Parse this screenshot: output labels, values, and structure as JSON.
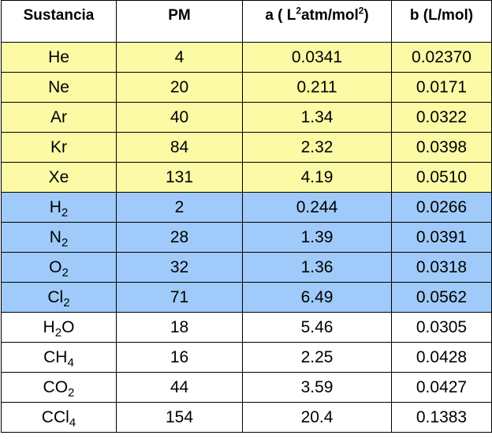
{
  "table": {
    "headers": {
      "sustancia": "Sustancia",
      "pm": "PM",
      "a_prefix": "a ( L",
      "a_sup1": "2",
      "a_mid": "atm/mol",
      "a_sup2": "2",
      "a_suffix": ")",
      "b": "b (L/mol)"
    },
    "rows": [
      {
        "group": "noble",
        "formula": [
          {
            "t": "He"
          }
        ],
        "pm": "4",
        "a": "0.0341",
        "b": "0.02370"
      },
      {
        "group": "noble",
        "formula": [
          {
            "t": "Ne"
          }
        ],
        "pm": "20",
        "a": "0.211",
        "b": "0.0171"
      },
      {
        "group": "noble",
        "formula": [
          {
            "t": "Ar"
          }
        ],
        "pm": "40",
        "a": "1.34",
        "b": "0.0322"
      },
      {
        "group": "noble",
        "formula": [
          {
            "t": "Kr"
          }
        ],
        "pm": "84",
        "a": "2.32",
        "b": "0.0398"
      },
      {
        "group": "noble",
        "formula": [
          {
            "t": "Xe"
          }
        ],
        "pm": "131",
        "a": "4.19",
        "b": "0.0510"
      },
      {
        "group": "diatomic",
        "formula": [
          {
            "t": "H"
          },
          {
            "s": "2"
          }
        ],
        "pm": "2",
        "a": "0.244",
        "b": "0.0266"
      },
      {
        "group": "diatomic",
        "formula": [
          {
            "t": "N"
          },
          {
            "s": "2"
          }
        ],
        "pm": "28",
        "a": "1.39",
        "b": "0.0391"
      },
      {
        "group": "diatomic",
        "formula": [
          {
            "t": "O"
          },
          {
            "s": "2"
          }
        ],
        "pm": "32",
        "a": "1.36",
        "b": "0.0318"
      },
      {
        "group": "diatomic",
        "formula": [
          {
            "t": "Cl"
          },
          {
            "s": "2"
          }
        ],
        "pm": "71",
        "a": "6.49",
        "b": "0.0562"
      },
      {
        "group": "molecule",
        "formula": [
          {
            "t": "H"
          },
          {
            "s": "2"
          },
          {
            "t": "O"
          }
        ],
        "pm": "18",
        "a": "5.46",
        "b": "0.0305"
      },
      {
        "group": "molecule",
        "formula": [
          {
            "t": "CH"
          },
          {
            "s": "4"
          }
        ],
        "pm": "16",
        "a": "2.25",
        "b": "0.0428"
      },
      {
        "group": "molecule",
        "formula": [
          {
            "t": "CO"
          },
          {
            "s": "2"
          }
        ],
        "pm": "44",
        "a": "3.59",
        "b": "0.0427"
      },
      {
        "group": "molecule",
        "formula": [
          {
            "t": "CCl"
          },
          {
            "s": "4"
          }
        ],
        "pm": "154",
        "a": "20.4",
        "b": "0.1383"
      }
    ]
  }
}
